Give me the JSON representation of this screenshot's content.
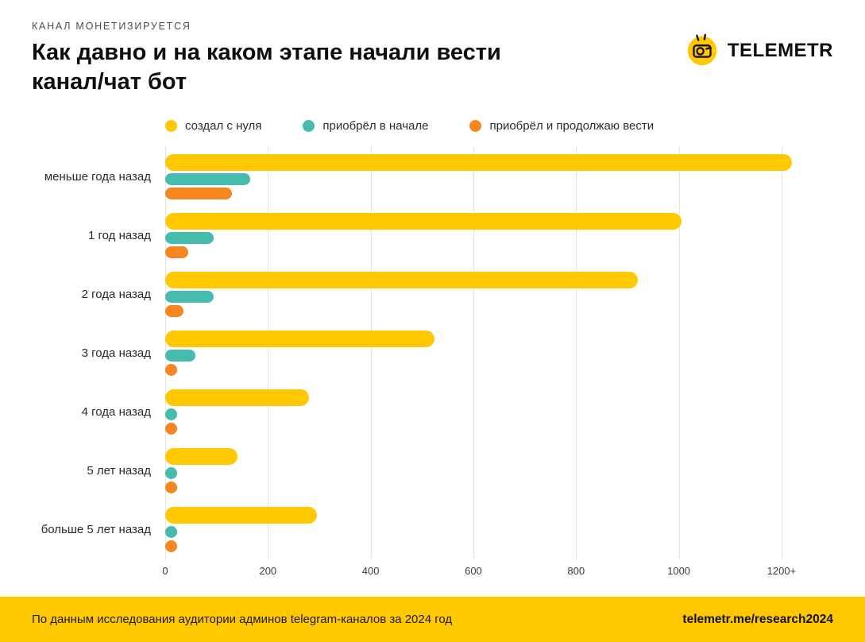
{
  "header": {
    "eyebrow": "КАНАЛ МОНЕТИЗИРУЕТСЯ",
    "title_line1": "Как давно и на каком этапе начали вести",
    "title_line2": "канал/чат бот",
    "brand": "TELEMETR"
  },
  "brand_color": "#FFC800",
  "chart_data": {
    "type": "bar",
    "orientation": "horizontal",
    "title": "Как давно и на каком этапе начали вести канал/чат бот",
    "categories": [
      "меньше года назад",
      "1 год назад",
      "2 года назад",
      "3 года назад",
      "4 года назад",
      "5 лет назад",
      "больше 5 лет назад"
    ],
    "series": [
      {
        "name": "создал с нуля",
        "color": "#FFC800",
        "values": [
          1220,
          1005,
          920,
          525,
          280,
          140,
          295
        ]
      },
      {
        "name": "приобрёл в начале",
        "color": "#45BCAE",
        "values": [
          165,
          95,
          95,
          58,
          22,
          8,
          8
        ]
      },
      {
        "name": "приобрёл и продолжаю вести",
        "color": "#F6861F",
        "values": [
          130,
          45,
          35,
          20,
          10,
          8,
          10
        ]
      }
    ],
    "x_ticks": [
      "0",
      "200",
      "400",
      "600",
      "800",
      "1000",
      "1200+"
    ],
    "x_tick_values": [
      0,
      200,
      400,
      600,
      800,
      1000,
      1200
    ],
    "xlim": [
      0,
      1245
    ],
    "grid": true,
    "legend_position": "top"
  },
  "footer": {
    "left": "По данным исследования аудитории админов telegram-каналов за 2024 год",
    "right": "telemetr.me/research2024"
  }
}
